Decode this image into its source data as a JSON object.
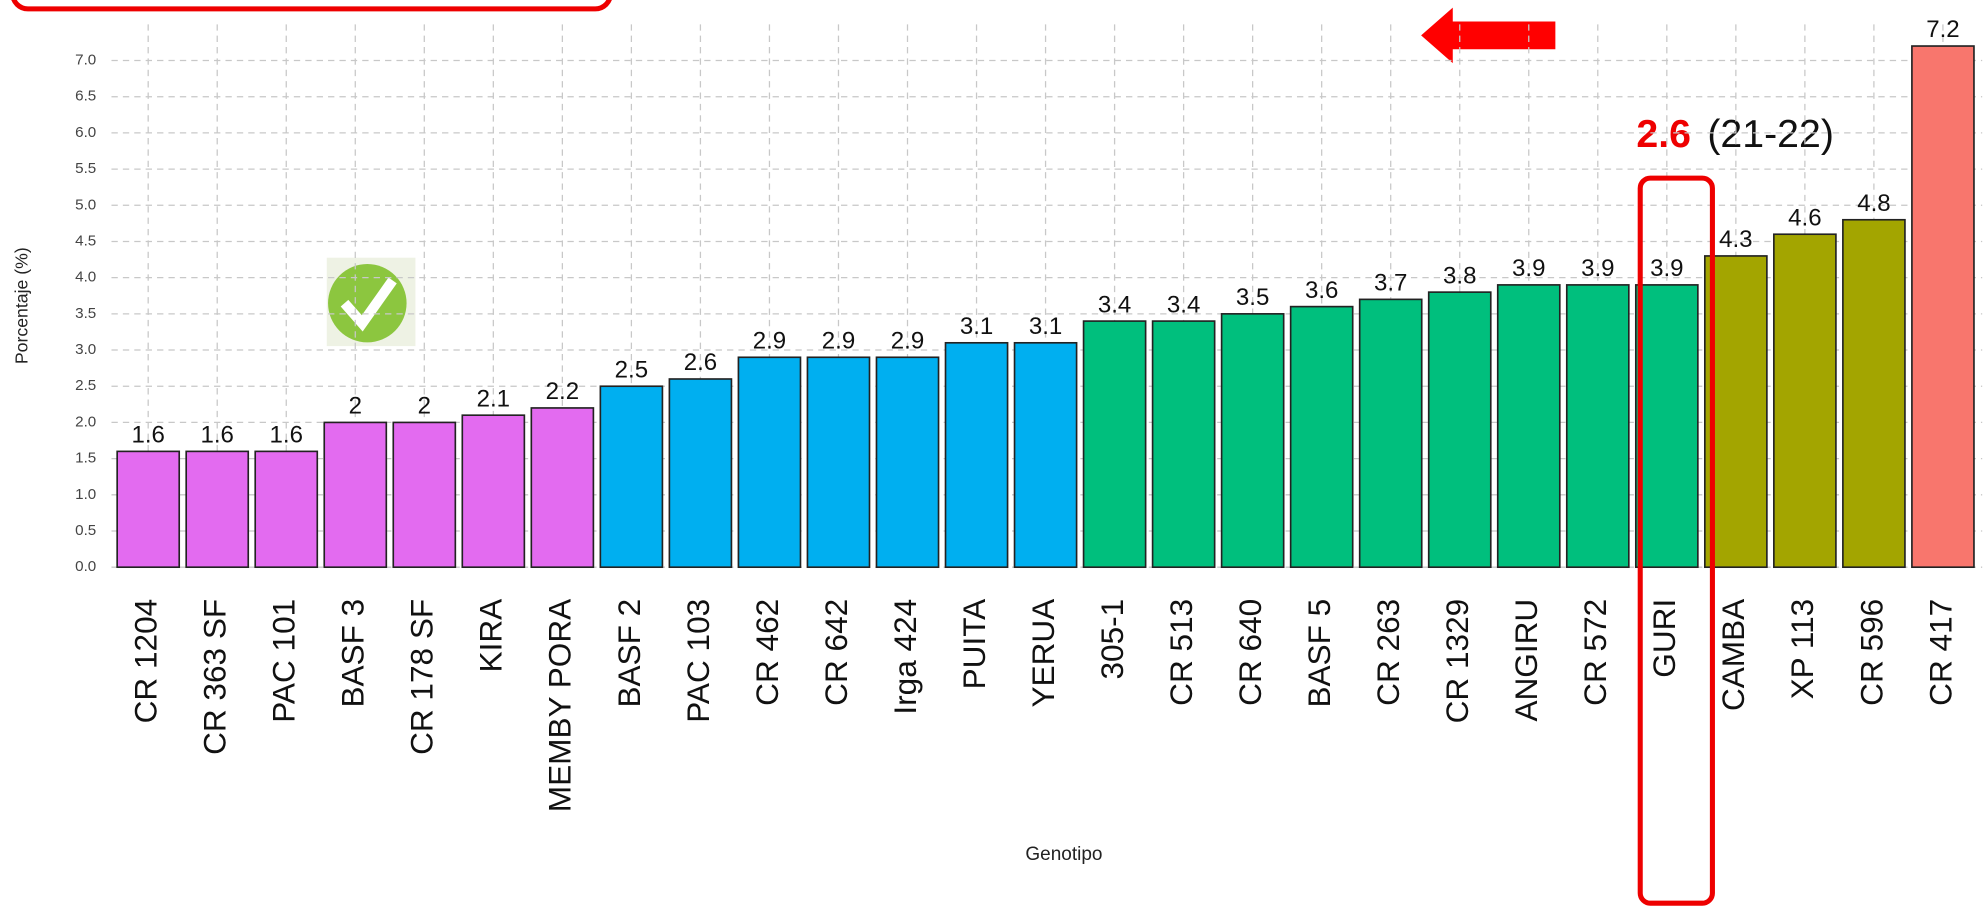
{
  "chart_data": {
    "type": "bar",
    "categories": [
      "CR 1204",
      "CR 363 SF",
      "PAC 101",
      "BASF 3",
      "CR 178 SF",
      "KIRA",
      "MEMBY PORA",
      "BASF 2",
      "PAC 103",
      "CR 462",
      "CR 642",
      "Irga 424",
      "PUITA",
      "YERUA",
      "305-1",
      "CR 513",
      "CR 640",
      "BASF 5",
      "CR 263",
      "CR 1329",
      "ANGIRU",
      "CR 572",
      "GURI",
      "CAMBA",
      "XP 113",
      "CR 596",
      "CR 417"
    ],
    "values": [
      1.6,
      1.6,
      1.6,
      2,
      2,
      2.1,
      2.2,
      2.5,
      2.6,
      2.9,
      2.9,
      2.9,
      3.1,
      3.1,
      3.4,
      3.4,
      3.5,
      3.6,
      3.7,
      3.8,
      3.9,
      3.9,
      3.9,
      4.3,
      4.6,
      4.8,
      7.2
    ],
    "colors": [
      "#e36bf0",
      "#e36bf0",
      "#e36bf0",
      "#e36bf0",
      "#e36bf0",
      "#e36bf0",
      "#e36bf0",
      "#00aff0",
      "#00aff0",
      "#00aff0",
      "#00aff0",
      "#00aff0",
      "#00aff0",
      "#00aff0",
      "#00bf7d",
      "#00bf7d",
      "#00bf7d",
      "#00bf7d",
      "#00bf7d",
      "#00bf7d",
      "#00bf7d",
      "#00bf7d",
      "#00bf7d",
      "#a3a500",
      "#a3a500",
      "#a3a500",
      "#f8766d"
    ],
    "ylim": [
      0,
      7.5
    ],
    "yticks": [
      {
        "value": 0,
        "label": "0.0"
      },
      0.5,
      {
        "value": 1,
        "label": "1.0"
      },
      1.5,
      {
        "value": 2,
        "label": "2.0"
      },
      2.5,
      {
        "value": 3,
        "label": "3.0"
      },
      3.5,
      {
        "value": 4,
        "label": "4.0"
      },
      4.5,
      {
        "value": 5,
        "label": "5.0"
      },
      5.5,
      {
        "value": 6,
        "label": "6.0"
      },
      6.5,
      {
        "value": 7,
        "label": "7.0"
      }
    ],
    "grid": true,
    "xlabel": "Genotipo",
    "ylabel": "Porcentaje (%)",
    "annotations": [
      "2.6",
      "(21-22)"
    ]
  }
}
